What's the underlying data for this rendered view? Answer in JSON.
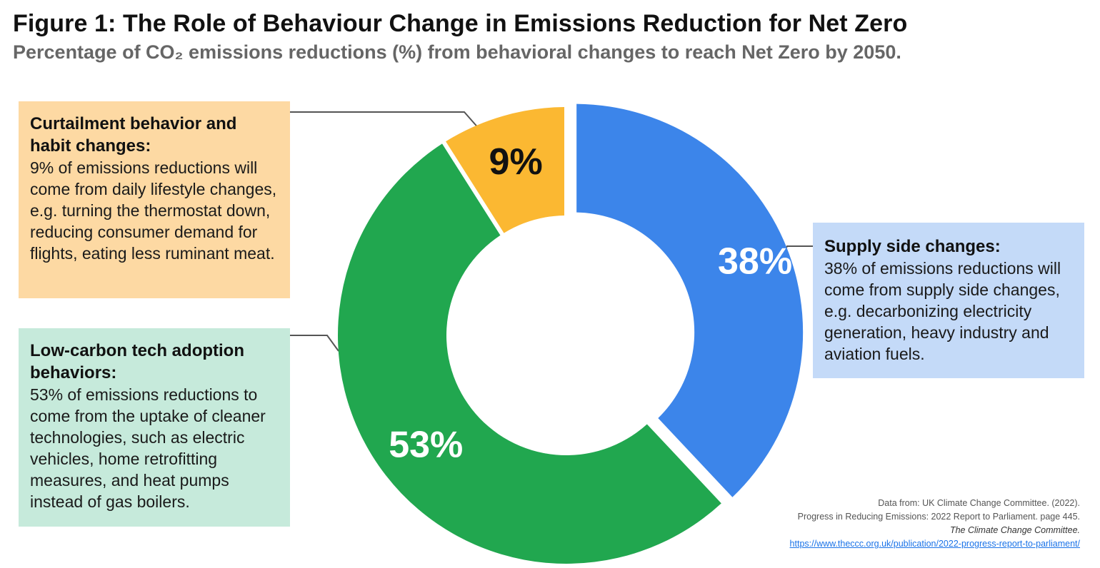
{
  "title": "Figure 1: The Role of Behaviour Change in Emissions Reduction for Net Zero",
  "subtitle": "Percentage of CO₂ emissions reductions (%) from behavioral changes to reach Net Zero by 2050.",
  "chart_data": {
    "type": "pie",
    "donut": true,
    "categories": [
      "Supply side changes",
      "Low-carbon tech adoption behaviors",
      "Curtailment behavior and habit changes"
    ],
    "values": [
      38,
      53,
      9
    ],
    "slice_labels": [
      "38%",
      "53%",
      "9%"
    ],
    "colors": [
      "#3c85ea",
      "#21a74f",
      "#fbb832"
    ],
    "label_colors": [
      "#ffffff",
      "#ffffff",
      "#111111"
    ],
    "exploded_slice": "Supply side changes"
  },
  "callouts": {
    "curtailment": {
      "heading": "Curtailment behavior and habit changes:",
      "body": "9% of emissions reductions will come from daily lifestyle changes, e.g. turning the thermostat down, reducing consumer demand for flights, eating less ruminant meat.",
      "color": "#fdd9a3"
    },
    "lowcarbon": {
      "heading": "Low-carbon tech adoption behaviors:",
      "body": "53% of emissions reductions to come from the uptake of cleaner technologies, such as electric vehicles, home retrofitting measures, and heat pumps instead of gas boilers.",
      "color": "#c6eadb"
    },
    "supply": {
      "heading": "Supply side changes:",
      "body": "38% of emissions reductions will come from supply side changes, e.g. decarbonizing electricity generation, heavy industry and aviation fuels.",
      "color": "#c4daf8"
    }
  },
  "source": {
    "line1": "Data from: UK Climate Change Committee. (2022).",
    "line2": "Progress in Reducing Emissions: 2022 Report to Parliament. page 445.",
    "line3": "The Climate Change Committee.",
    "url": "https://www.theccc.org.uk/publication/2022-progress-report-to-parliament/"
  }
}
